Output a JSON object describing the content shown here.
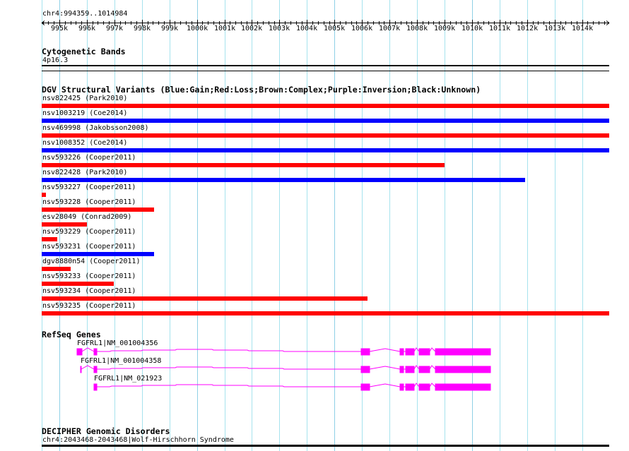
{
  "ruler": {
    "range_label": "chr4:994359..1014984",
    "start": 994359,
    "end": 1014984,
    "tick_labels": [
      "995k",
      "996k",
      "997k",
      "998k",
      "999k",
      "1000k",
      "1001k",
      "1002k",
      "1003k",
      "1004k",
      "1005k",
      "1006k",
      "1007k",
      "1008k",
      "1009k",
      "1010k",
      "1011k",
      "1012k",
      "1013k",
      "1014k"
    ]
  },
  "cytoband": {
    "title": "Cytogenetic Bands",
    "band": "4p16.3"
  },
  "dgv": {
    "title": "DGV Structural Variants (Blue:Gain;Red:Loss;Brown:Complex;Purple:Inversion;Black:Unknown)",
    "colors": {
      "gain": "#0000ff",
      "loss": "#ff0000"
    },
    "variants": [
      {
        "label": "nsv822425 (Park2010)",
        "type": "loss"
      },
      {
        "label": "nsv1003219 (Coe2014)",
        "type": "gain"
      },
      {
        "label": "nsv469998 (Jakobsson2008)",
        "type": "loss"
      },
      {
        "label": "nsv1008352 (Coe2014)",
        "type": "gain"
      },
      {
        "label": "nsv593226 (Cooper2011)",
        "type": "loss"
      },
      {
        "label": "nsv822428 (Park2010)",
        "type": "gain"
      },
      {
        "label": "nsv593227 (Cooper2011)",
        "type": "loss"
      },
      {
        "label": "nsv593228 (Cooper2011)",
        "type": "loss"
      },
      {
        "label": "esv28049 (Conrad2009)",
        "type": "loss"
      },
      {
        "label": "nsv593229 (Cooper2011)",
        "type": "loss"
      },
      {
        "label": "nsv593231 (Cooper2011)",
        "type": "gain"
      },
      {
        "label": "dgv8880n54 (Cooper2011)",
        "type": "loss"
      },
      {
        "label": "nsv593233 (Cooper2011)",
        "type": "loss"
      },
      {
        "label": "nsv593234 (Cooper2011)",
        "type": "loss"
      },
      {
        "label": "nsv593235 (Cooper2011)",
        "type": "loss"
      }
    ]
  },
  "refseq": {
    "title": "RefSeq Genes",
    "color": "#ff00ff",
    "genes": [
      {
        "label": "FGFRL1|NM_001004356"
      },
      {
        "label": "FGFRL1|NM_001004358"
      },
      {
        "label": "FGFRL1|NM_021923"
      }
    ]
  },
  "decipher": {
    "title": "DECIPHER Genomic Disorders",
    "item": "chr4:2043468-2043468|Wolf-Hirschhorn Syndrome"
  }
}
